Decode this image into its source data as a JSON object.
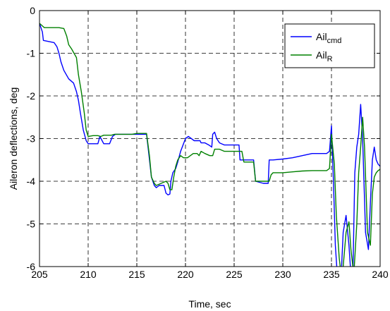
{
  "chart_data": {
    "type": "line",
    "xlabel": "Time, sec",
    "ylabel": "Aileron deflections, deg",
    "xlim": [
      205,
      240
    ],
    "ylim": [
      -6,
      0
    ],
    "xticks": [
      205,
      210,
      215,
      220,
      225,
      230,
      235,
      240
    ],
    "yticks": [
      0,
      -1,
      -2,
      -3,
      -4,
      -5,
      -6
    ],
    "xtick_labels": [
      "205",
      "210",
      "215",
      "220",
      "225",
      "230",
      "235",
      "240"
    ],
    "ytick_labels": [
      "0",
      "-1",
      "-2",
      "-3",
      "-4",
      "-5",
      "-6"
    ],
    "grid": true,
    "grid_style": "dashed",
    "legend_position": "top-right",
    "series": [
      {
        "name": "Ail_cmd",
        "legend_base": "Ail",
        "legend_sub": "cmd",
        "color": "#0000ff",
        "x": [
          205.0,
          205.3,
          205.4,
          206.5,
          206.8,
          207.0,
          207.2,
          207.5,
          208.0,
          208.5,
          208.8,
          209.0,
          209.2,
          209.5,
          209.8,
          210.0,
          210.3,
          211.0,
          211.2,
          211.6,
          211.9,
          212.2,
          212.5,
          212.8,
          213.0,
          213.5,
          214.0,
          214.5,
          215.0,
          215.5,
          216.0,
          216.2,
          216.5,
          216.8,
          217.0,
          217.3,
          217.8,
          218.0,
          218.2,
          218.4,
          218.5,
          218.7,
          219.0,
          219.2,
          219.5,
          220.0,
          220.3,
          220.6,
          220.9,
          221.1,
          221.5,
          221.6,
          222.0,
          222.4,
          222.7,
          222.8,
          223.0,
          223.2,
          223.5,
          224.0,
          224.5,
          225.0,
          225.5,
          225.6,
          226.0,
          226.5,
          227.0,
          227.2,
          228.0,
          228.5,
          228.6,
          229.0,
          230.0,
          231.0,
          232.0,
          233.0,
          234.0,
          234.5,
          234.8,
          235.0,
          235.2,
          235.4,
          235.6,
          235.8,
          236.0,
          236.2,
          236.5,
          236.8,
          237.0,
          237.2,
          237.4,
          237.6,
          237.8,
          238.0,
          238.2,
          238.5,
          238.8,
          239.0,
          239.2,
          239.4,
          239.6,
          239.8,
          240.0
        ],
        "y": [
          -0.3,
          -0.5,
          -0.7,
          -0.75,
          -0.85,
          -1.0,
          -1.2,
          -1.4,
          -1.6,
          -1.7,
          -1.9,
          -2.1,
          -2.4,
          -2.8,
          -3.05,
          -3.12,
          -3.12,
          -3.12,
          -2.95,
          -3.12,
          -3.12,
          -3.12,
          -2.95,
          -2.9,
          -2.9,
          -2.9,
          -2.9,
          -2.9,
          -2.9,
          -2.9,
          -2.9,
          -3.3,
          -3.9,
          -4.1,
          -4.15,
          -4.1,
          -4.1,
          -4.28,
          -4.32,
          -4.3,
          -4.0,
          -3.8,
          -3.7,
          -3.55,
          -3.3,
          -3.0,
          -2.95,
          -3.0,
          -3.05,
          -3.05,
          -3.05,
          -3.1,
          -3.1,
          -3.15,
          -3.2,
          -2.9,
          -2.85,
          -3.0,
          -3.1,
          -3.15,
          -3.15,
          -3.15,
          -3.15,
          -3.5,
          -3.5,
          -3.5,
          -3.5,
          -4.0,
          -4.05,
          -4.05,
          -3.5,
          -3.5,
          -3.48,
          -3.45,
          -3.4,
          -3.35,
          -3.35,
          -3.35,
          -3.3,
          -2.7,
          -4.0,
          -5.5,
          -6.2,
          -6.2,
          -6.2,
          -5.2,
          -4.8,
          -5.5,
          -6.2,
          -6.2,
          -3.8,
          -3.2,
          -2.9,
          -2.2,
          -3.0,
          -5.2,
          -5.6,
          -4.5,
          -3.5,
          -3.2,
          -3.5,
          -3.6,
          -3.65
        ]
      },
      {
        "name": "Ail_R",
        "legend_base": "Ail",
        "legend_sub": "R",
        "color": "#008000",
        "x": [
          205.0,
          205.4,
          205.5,
          207.0,
          207.5,
          207.8,
          208.0,
          208.3,
          208.8,
          209.0,
          209.3,
          209.6,
          209.8,
          210.0,
          210.5,
          211.0,
          211.3,
          211.6,
          212.0,
          212.4,
          212.7,
          213.0,
          213.5,
          214.0,
          214.5,
          215.0,
          215.5,
          216.0,
          216.3,
          216.5,
          216.8,
          217.0,
          217.5,
          218.0,
          218.2,
          218.4,
          218.6,
          218.8,
          219.0,
          219.2,
          219.5,
          219.8,
          220.0,
          220.2,
          220.5,
          220.8,
          221.0,
          221.2,
          221.4,
          221.6,
          222.0,
          222.5,
          222.8,
          223.0,
          223.2,
          223.5,
          224.0,
          225.0,
          225.8,
          226.0,
          227.0,
          227.2,
          228.0,
          228.6,
          228.8,
          229.0,
          230.0,
          231.0,
          232.0,
          233.0,
          234.0,
          234.5,
          234.8,
          235.0,
          235.3,
          235.5,
          235.8,
          236.0,
          236.2,
          236.5,
          236.8,
          237.0,
          237.3,
          237.6,
          237.8,
          238.0,
          238.2,
          238.4,
          238.7,
          239.0,
          239.2,
          239.4,
          239.6,
          239.8,
          240.0
        ],
        "y": [
          -0.3,
          -0.38,
          -0.4,
          -0.4,
          -0.42,
          -0.6,
          -0.8,
          -0.9,
          -1.1,
          -1.5,
          -1.9,
          -2.4,
          -2.8,
          -2.95,
          -2.93,
          -2.93,
          -2.95,
          -2.92,
          -2.92,
          -2.92,
          -2.9,
          -2.9,
          -2.9,
          -2.9,
          -2.9,
          -2.88,
          -2.88,
          -2.88,
          -3.4,
          -3.9,
          -4.05,
          -4.1,
          -4.05,
          -4.0,
          -4.05,
          -4.2,
          -4.2,
          -3.9,
          -3.65,
          -3.5,
          -3.4,
          -3.45,
          -3.45,
          -3.45,
          -3.4,
          -3.35,
          -3.35,
          -3.35,
          -3.4,
          -3.3,
          -3.35,
          -3.4,
          -3.4,
          -3.25,
          -3.25,
          -3.25,
          -3.3,
          -3.3,
          -3.3,
          -3.55,
          -3.55,
          -4.0,
          -4.0,
          -4.0,
          -3.85,
          -3.8,
          -3.8,
          -3.78,
          -3.76,
          -3.75,
          -3.75,
          -3.75,
          -3.7,
          -2.9,
          -3.6,
          -4.8,
          -5.8,
          -6.2,
          -6.0,
          -5.2,
          -4.95,
          -5.6,
          -6.2,
          -5.0,
          -3.8,
          -3.2,
          -2.5,
          -3.2,
          -5.2,
          -5.5,
          -4.3,
          -3.9,
          -3.8,
          -3.75,
          -3.72
        ]
      }
    ]
  }
}
